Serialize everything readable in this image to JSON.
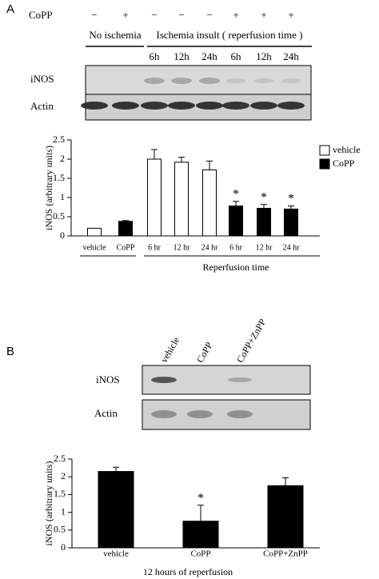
{
  "panel_a": {
    "label": "A",
    "treatment": "CoPP",
    "treatment_signs": [
      "−",
      "+",
      "−",
      "−",
      "−",
      "+",
      "+",
      "+"
    ],
    "groups": [
      "No ischemia",
      "Ischemia insult ( reperfusion time )"
    ],
    "lanes": [
      "6h",
      "12h",
      "24h",
      "6h",
      "12h",
      "24h"
    ],
    "blots": [
      "iNOS",
      "Actin"
    ]
  },
  "panel_b": {
    "label": "B",
    "lanes": [
      "vehicle",
      "CoPP",
      "CoPP+ZnPP"
    ],
    "blots": [
      "iNOS",
      "Actin"
    ]
  },
  "chart_data": [
    {
      "type": "bar",
      "y_label": "iNOS (arbitrary units)",
      "x_label": "Reperfusion time",
      "categories": [
        "vehicle",
        "CoPP",
        "6 hr",
        "12 hr",
        "24 hr",
        "6 hr",
        "12 hr",
        "24 hr"
      ],
      "series": [
        {
          "name": "vehicle",
          "color": "#ffffff",
          "values": [
            0.2,
            null,
            2.0,
            1.92,
            1.72,
            null,
            null,
            null
          ],
          "errors": [
            0,
            null,
            0.25,
            0.13,
            0.23,
            null,
            null,
            null
          ]
        },
        {
          "name": "CoPP",
          "color": "#000000",
          "values": [
            null,
            0.38,
            null,
            null,
            null,
            0.78,
            0.72,
            0.7
          ],
          "errors": [
            null,
            0.02,
            null,
            null,
            null,
            0.12,
            0.1,
            0.08
          ],
          "significance": [
            null,
            null,
            null,
            null,
            null,
            "*",
            "*",
            "*"
          ]
        }
      ],
      "ylim": [
        0,
        2.5
      ],
      "yticks": [
        0,
        0.5,
        1,
        1.5,
        2,
        2.5
      ],
      "legend": "right"
    },
    {
      "type": "bar",
      "y_label": "iNOS (arbitrary units)",
      "x_label": "12 hours of reperfusion",
      "categories": [
        "vehicle",
        "CoPP",
        "CoPP+ZnPP"
      ],
      "values": [
        2.15,
        0.75,
        1.75
      ],
      "errors": [
        0.12,
        0.45,
        0.22
      ],
      "significance": [
        null,
        "*",
        null
      ],
      "color": "#000000",
      "ylim": [
        0,
        2.5
      ],
      "yticks": [
        0,
        0.5,
        1,
        1.5,
        2,
        2.5
      ]
    }
  ]
}
